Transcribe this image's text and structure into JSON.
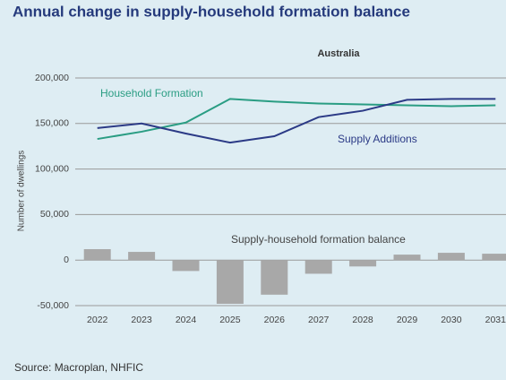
{
  "chart_data": {
    "type": "combo",
    "title": "Annual change in supply-household formation balance",
    "subtitle": "Australia",
    "y_label": "Number of dwellings",
    "source": "Source: Macroplan, NHFIC",
    "categories": [
      "2022",
      "2023",
      "2024",
      "2025",
      "2026",
      "2027",
      "2028",
      "2029",
      "2030",
      "2031"
    ],
    "series": [
      {
        "name": "Household Formation",
        "type": "line",
        "color": "#2a9d83",
        "values": [
          133000,
          141000,
          151000,
          177000,
          174000,
          172000,
          171000,
          170000,
          169000,
          170000
        ]
      },
      {
        "name": "Supply Additions",
        "type": "line",
        "color": "#2b3a86",
        "values": [
          145000,
          150000,
          139000,
          129000,
          136000,
          157000,
          164000,
          176000,
          177000,
          177000
        ]
      },
      {
        "name": "Supply-household formation balance",
        "type": "bar",
        "color": "#a8a8a8",
        "values": [
          12000,
          9000,
          -12000,
          -48000,
          -38000,
          -15000,
          -7000,
          6000,
          8000,
          7000
        ]
      }
    ],
    "ylim": [
      -50000,
      200000
    ],
    "yticks": [
      {
        "value": -50000,
        "label": "-50,000"
      },
      0,
      {
        "value": 50000,
        "label": "50,000"
      },
      {
        "value": 100000,
        "label": "100,000"
      },
      {
        "value": 150000,
        "label": "150,000"
      },
      {
        "value": 200000,
        "label": "200,000"
      }
    ],
    "grid": true
  }
}
